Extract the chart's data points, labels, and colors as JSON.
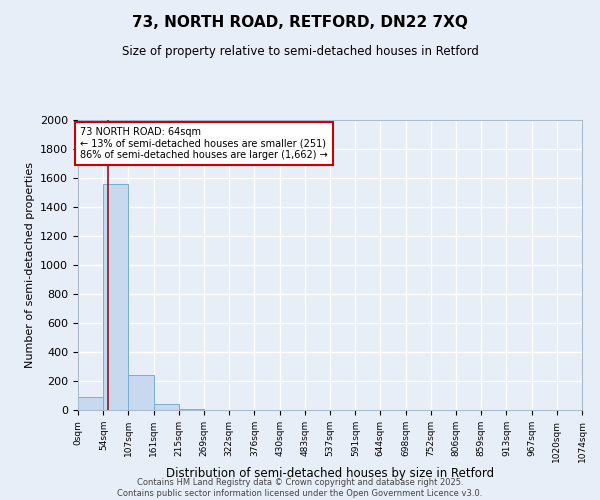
{
  "title": "73, NORTH ROAD, RETFORD, DN22 7XQ",
  "subtitle": "Size of property relative to semi-detached houses in Retford",
  "xlabel": "Distribution of semi-detached houses by size in Retford",
  "ylabel": "Number of semi-detached properties",
  "bar_values": [
    90,
    1560,
    240,
    40,
    5,
    2,
    1,
    0,
    0,
    0,
    0,
    0,
    0,
    0,
    0,
    0,
    0,
    0,
    0,
    0
  ],
  "bin_edges": [
    0,
    54,
    107,
    161,
    215,
    269,
    322,
    376,
    430,
    483,
    537,
    591,
    644,
    698,
    752,
    806,
    859,
    913,
    967,
    1020,
    1074
  ],
  "x_tick_labels": [
    "0sqm",
    "54sqm",
    "107sqm",
    "161sqm",
    "215sqm",
    "269sqm",
    "322sqm",
    "376sqm",
    "430sqm",
    "483sqm",
    "537sqm",
    "591sqm",
    "644sqm",
    "698sqm",
    "752sqm",
    "806sqm",
    "859sqm",
    "913sqm",
    "967sqm",
    "1020sqm",
    "1074sqm"
  ],
  "bar_color": "#c8d8ee",
  "bar_edgecolor": "#7aadd4",
  "property_line_x": 64,
  "property_line_color": "#8b1a1a",
  "annotation_text": "73 NORTH ROAD: 64sqm\n← 13% of semi-detached houses are smaller (251)\n86% of semi-detached houses are larger (1,662) →",
  "annotation_box_color": "#cc0000",
  "ylim": [
    0,
    2000
  ],
  "yticks": [
    0,
    200,
    400,
    600,
    800,
    1000,
    1200,
    1400,
    1600,
    1800,
    2000
  ],
  "bg_color": "#e8eef8",
  "grid_color": "#d0d8e8",
  "footer_line1": "Contains HM Land Registry data © Crown copyright and database right 2025.",
  "footer_line2": "Contains public sector information licensed under the Open Government Licence v3.0."
}
